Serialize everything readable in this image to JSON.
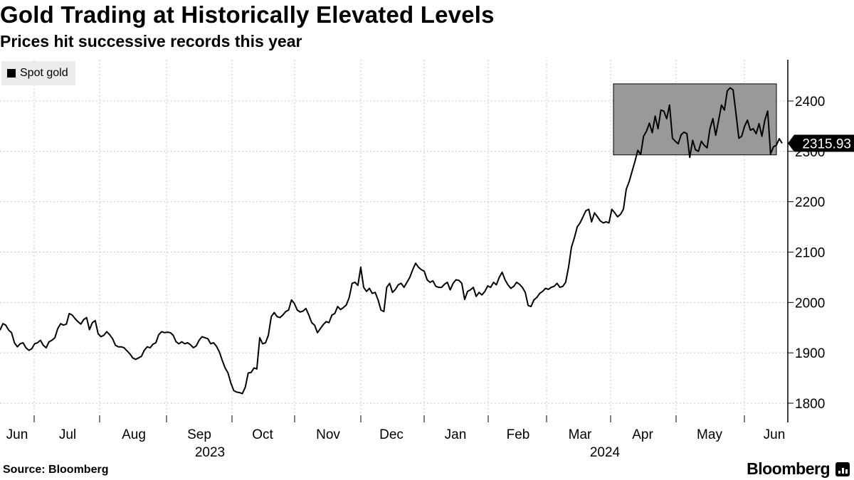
{
  "header": {
    "title": "Gold Trading at Historically Elevated Levels",
    "subtitle": "Prices hit successive records this year"
  },
  "legend": {
    "label": "Spot gold",
    "icon": "square-swatch"
  },
  "footer": {
    "source": "Source: Bloomberg",
    "brand": "Bloomberg",
    "brand_icon": "bloomberg-chart-icon"
  },
  "chart_data": {
    "type": "line",
    "title": "Gold Trading at Historically Elevated Levels",
    "subtitle": "Prices hit successive records this year",
    "xlabel": "",
    "ylabel": "",
    "ylim": [
      1770,
      2490
    ],
    "y_ticks": [
      1800,
      1900,
      2000,
      2100,
      2200,
      2300,
      2400
    ],
    "grid": true,
    "legend_position": "top-left",
    "colors": {
      "line": "#000000",
      "highlight": "#999999",
      "grid": "#c8c8c8"
    },
    "last_value": 2315.93,
    "last_value_label": "2315.93",
    "highlight_range": {
      "y": [
        2293,
        2434
      ],
      "from_month": "Mar 2024 (late)",
      "to_month": "Jun 2024"
    },
    "month_labels": [
      "Jun",
      "Jul",
      "Aug",
      "Sep",
      "Oct",
      "Nov",
      "Dec",
      "Jan",
      "Feb",
      "Mar",
      "Apr",
      "May",
      "Jun"
    ],
    "year_labels": [
      "2023",
      "2024"
    ],
    "series": [
      {
        "name": "Spot gold",
        "values": [
          1945,
          1958,
          1955,
          1945,
          1940,
          1920,
          1912,
          1918,
          1920,
          1910,
          1905,
          1908,
          1918,
          1920,
          1925,
          1915,
          1910,
          1922,
          1925,
          1930,
          1948,
          1958,
          1955,
          1957,
          1978,
          1975,
          1968,
          1962,
          1957,
          1966,
          1970,
          1946,
          1960,
          1964,
          1938,
          1932,
          1935,
          1942,
          1936,
          1928,
          1915,
          1912,
          1912,
          1910,
          1904,
          1898,
          1890,
          1887,
          1890,
          1893,
          1905,
          1912,
          1910,
          1917,
          1920,
          1936,
          1942,
          1940,
          1941,
          1940,
          1935,
          1922,
          1918,
          1922,
          1918,
          1920,
          1916,
          1910,
          1914,
          1925,
          1932,
          1930,
          1928,
          1918,
          1920,
          1913,
          1902,
          1885,
          1870,
          1860,
          1840,
          1825,
          1822,
          1821,
          1819,
          1832,
          1860,
          1861,
          1870,
          1868,
          1930,
          1918,
          1920,
          1935,
          1972,
          1980,
          1972,
          1970,
          1975,
          1982,
          1985,
          2005,
          1998,
          1985,
          1981,
          1983,
          1988,
          1975,
          1960,
          1955,
          1940,
          1948,
          1956,
          1962,
          1960,
          1975,
          1978,
          1992,
          1986,
          1990,
          1995,
          2010,
          2038,
          2040,
          2034,
          2070,
          2030,
          2022,
          2028,
          2018,
          2020,
          2005,
          1985,
          1982,
          2030,
          2038,
          2020,
          2026,
          2035,
          2038,
          2030,
          2040,
          2050,
          2065,
          2078,
          2070,
          2065,
          2062,
          2045,
          2040,
          2043,
          2032,
          2030,
          2030,
          2036,
          2040,
          2025,
          2038,
          2045,
          2044,
          2038,
          2006,
          2022,
          2025,
          2030,
          2012,
          2020,
          2015,
          2022,
          2033,
          2030,
          2040,
          2035,
          2050,
          2060,
          2045,
          2035,
          2028,
          2032,
          2040,
          2036,
          2030,
          2020,
          1994,
          1992,
          2005,
          2010,
          2018,
          2022,
          2028,
          2026,
          2030,
          2032,
          2038,
          2030,
          2032,
          2040,
          2070,
          2110,
          2128,
          2150,
          2158,
          2170,
          2182,
          2185,
          2160,
          2178,
          2170,
          2162,
          2158,
          2160,
          2158,
          2185,
          2178,
          2170,
          2175,
          2185,
          2225,
          2240,
          2260,
          2280,
          2302,
          2294,
          2330,
          2340,
          2356,
          2337,
          2370,
          2345,
          2382,
          2380,
          2365,
          2392,
          2326,
          2320,
          2315,
          2333,
          2338,
          2335,
          2288,
          2322,
          2303,
          2300,
          2320,
          2312,
          2307,
          2345,
          2365,
          2332,
          2362,
          2392,
          2382,
          2420,
          2426,
          2422,
          2376,
          2326,
          2330,
          2350,
          2362,
          2342,
          2345,
          2335,
          2355,
          2330,
          2362,
          2380,
          2295,
          2309,
          2312,
          2325,
          2315.93
        ]
      }
    ]
  }
}
